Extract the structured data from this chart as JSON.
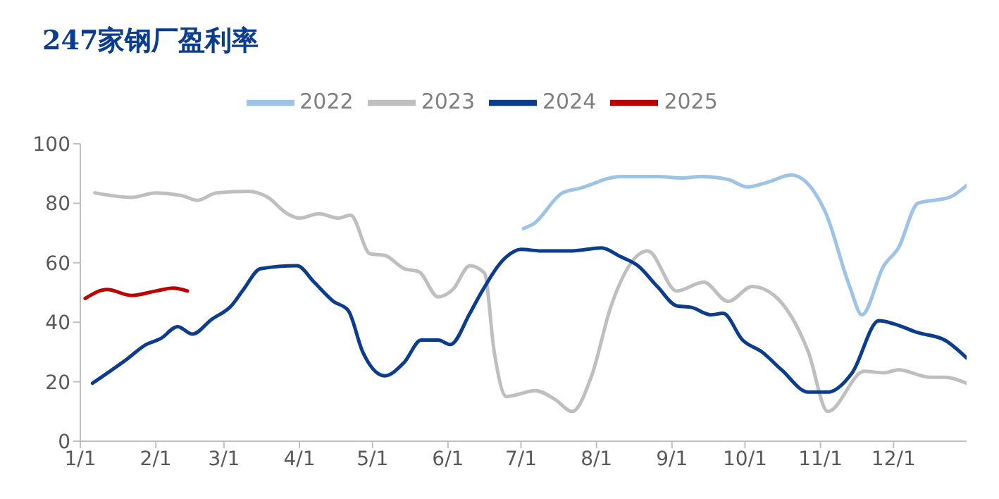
{
  "chart_data": {
    "type": "line",
    "title": "247家钢厂盈利率",
    "legend": "top",
    "xlim": [
      "--01-01",
      "--12-31"
    ],
    "ylim": [
      0,
      100
    ],
    "yticks": [
      0,
      20,
      40,
      60,
      80,
      100
    ],
    "xticks": [
      {
        "value": "--01-01",
        "label": "1/1"
      },
      {
        "value": "--02-01",
        "label": "2/1"
      },
      {
        "value": "--03-01",
        "label": "3/1"
      },
      {
        "value": "--04-01",
        "label": "4/1"
      },
      {
        "value": "--05-01",
        "label": "5/1"
      },
      {
        "value": "--06-01",
        "label": "6/1"
      },
      {
        "value": "--07-01",
        "label": "7/1"
      },
      {
        "value": "--08-01",
        "label": "8/1"
      },
      {
        "value": "--09-01",
        "label": "9/1"
      },
      {
        "value": "--10-01",
        "label": "10/1"
      },
      {
        "value": "--11-01",
        "label": "11/1"
      },
      {
        "value": "--12-01",
        "label": "12/1"
      }
    ],
    "series": [
      {
        "name": "2022",
        "color": "#9dc3e6",
        "x": [
          "--07-02",
          "--07-06",
          "--07-18",
          "--07-25",
          "--08-11",
          "--08-26",
          "--09-05",
          "--09-13",
          "--09-24",
          "--10-02",
          "--10-10",
          "--10-20",
          "--11-03",
          "--11-13",
          "--11-18",
          "--11-27",
          "--12-03",
          "--12-11",
          "--12-24",
          "--12-31"
        ],
        "values": [
          71.5,
          73,
          83.5,
          85,
          89,
          89,
          88.5,
          89,
          88,
          85.5,
          87,
          89.5,
          77,
          52,
          42.5,
          59,
          65,
          80,
          82,
          86
        ]
      },
      {
        "name": "2023",
        "color": "#bfbfbf",
        "x": [
          "--01-07",
          "--01-22",
          "--02-01",
          "--02-12",
          "--02-18",
          "--02-26",
          "--03-11",
          "--03-19",
          "--03-27",
          "--04-01",
          "--04-09",
          "--04-17",
          "--04-22",
          "--04-30",
          "--05-06",
          "--05-14",
          "--05-20",
          "--05-28",
          "--06-03",
          "--06-10",
          "--06-16",
          "--06-20",
          "--06-25",
          "--07-07",
          "--07-15",
          "--07-22",
          "--07-30",
          "--08-07",
          "--08-22",
          "--09-03",
          "--09-14",
          "--09-24",
          "--10-04",
          "--10-13",
          "--10-27",
          "--11-04",
          "--11-19",
          "--11-27",
          "--12-03",
          "--12-16",
          "--12-22",
          "--12-31"
        ],
        "values": [
          83.5,
          82,
          83.5,
          82.5,
          81,
          83.5,
          84,
          82,
          76.5,
          75,
          76.5,
          75,
          76,
          63,
          62.5,
          58,
          57,
          48.5,
          51,
          59,
          56.5,
          30,
          15,
          17,
          14,
          10,
          22,
          45.5,
          64,
          50.5,
          53.5,
          47,
          52,
          49,
          30,
          10,
          23.5,
          23,
          24,
          21.5,
          21.5,
          19.5
        ]
      },
      {
        "name": "2024",
        "color": "#0b3d8c",
        "x": [
          "--01-06",
          "--01-20",
          "--01-28",
          "--02-03",
          "--02-10",
          "--02-16",
          "--02-24",
          "--03-04",
          "--03-09",
          "--03-16",
          "--03-31",
          "--04-07",
          "--04-15",
          "--04-21",
          "--04-27",
          "--05-06",
          "--05-14",
          "--05-21",
          "--05-28",
          "--06-02",
          "--06-10",
          "--06-14",
          "--06-25",
          "--07-01",
          "--07-09",
          "--07-22",
          "--08-03",
          "--08-11",
          "--08-18",
          "--08-26",
          "--09-03",
          "--09-09",
          "--09-17",
          "--09-22",
          "--09-30",
          "--10-08",
          "--10-16",
          "--10-27",
          "--11-04",
          "--11-14",
          "--11-25",
          "--12-01",
          "--12-11",
          "--12-22",
          "--12-31"
        ],
        "values": [
          19.5,
          27.5,
          32.5,
          34.5,
          38.5,
          36,
          41,
          45.5,
          51,
          58,
          59,
          53.5,
          47,
          44,
          30,
          22,
          26.5,
          34,
          34,
          32.5,
          43,
          49,
          62,
          64.5,
          64,
          64,
          65,
          62,
          59,
          52,
          45.5,
          45,
          42.5,
          43,
          34,
          30,
          24,
          16.5,
          16.5,
          23,
          40.5,
          39.5,
          36.5,
          34,
          28
        ]
      },
      {
        "name": "2025",
        "color": "#c00000",
        "x": [
          "--01-03",
          "--01-12",
          "--01-22",
          "--02-01",
          "--02-08",
          "--02-14"
        ],
        "values": [
          48,
          51,
          49,
          50.5,
          51.5,
          50.5
        ]
      }
    ]
  }
}
